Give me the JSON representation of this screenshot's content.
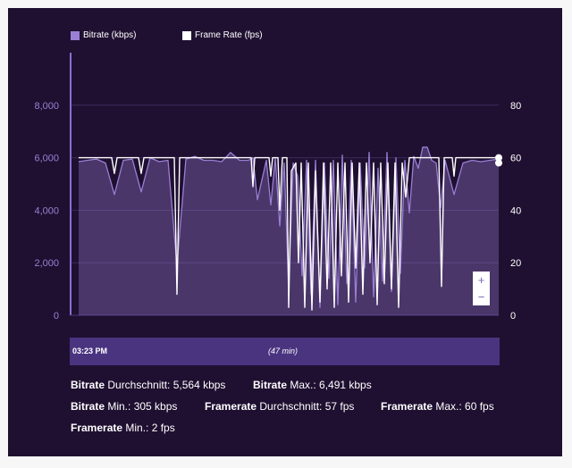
{
  "legend": {
    "bitrate_label": "Bitrate (kbps)",
    "framerate_label": "Frame Rate (fps)",
    "bitrate_color": "#9b7fd4",
    "framerate_color": "#ffffff"
  },
  "timeline": {
    "start": "03:23 PM",
    "duration": "(47 min)"
  },
  "zoom": {
    "in": "+",
    "out": "−"
  },
  "stats": [
    {
      "label": "Bitrate",
      "text": " Durchschnitt: 5,564 kbps"
    },
    {
      "label": "Bitrate",
      "text": " Max.: 6,491 kbps"
    },
    {
      "label": "Bitrate",
      "text": " Min.: 305 kbps"
    },
    {
      "label": "Framerate",
      "text": " Durchschnitt: 57 fps"
    },
    {
      "label": "Framerate",
      "text": " Max.: 60 fps"
    },
    {
      "label": "Framerate",
      "text": " Min.: 2 fps"
    }
  ],
  "chart_data": {
    "type": "line",
    "x_range": [
      0,
      47
    ],
    "y_left": {
      "ticks": [
        "0",
        "2,000",
        "4,000",
        "6,000",
        "8,000"
      ],
      "ylim": [
        0,
        10000
      ]
    },
    "y_right": {
      "ticks": [
        "0",
        "20",
        "40",
        "60",
        "80"
      ],
      "ylim": [
        0,
        100
      ]
    },
    "grid": true,
    "legend_position": "top-left",
    "series": [
      {
        "name": "Bitrate (kbps)",
        "color": "#9b7fd4",
        "points": [
          [
            0,
            5850
          ],
          [
            1,
            5900
          ],
          [
            2,
            5950
          ],
          [
            3,
            5800
          ],
          [
            4,
            4600
          ],
          [
            5,
            5900
          ],
          [
            6,
            5950
          ],
          [
            7,
            4700
          ],
          [
            8,
            6000
          ],
          [
            9,
            5850
          ],
          [
            10,
            5900
          ],
          [
            11,
            1900
          ],
          [
            12,
            5950
          ],
          [
            13,
            6050
          ],
          [
            14,
            5900
          ],
          [
            15,
            5900
          ],
          [
            16,
            5850
          ],
          [
            17,
            6200
          ],
          [
            18,
            5900
          ],
          [
            19,
            5900
          ],
          [
            19.5,
            6000
          ],
          [
            20,
            4400
          ],
          [
            21,
            5900
          ],
          [
            21.5,
            4200
          ],
          [
            22,
            6000
          ],
          [
            22.5,
            3400
          ],
          [
            23,
            5800
          ],
          [
            23.5,
            1000
          ],
          [
            24,
            5800
          ],
          [
            24.5,
            5300
          ],
          [
            25,
            1500
          ],
          [
            25.5,
            5900
          ],
          [
            26,
            800
          ],
          [
            26.5,
            5900
          ],
          [
            27,
            300
          ],
          [
            27.5,
            5800
          ],
          [
            28,
            1400
          ],
          [
            28.5,
            5900
          ],
          [
            29,
            400
          ],
          [
            29.5,
            6100
          ],
          [
            30,
            1200
          ],
          [
            30.5,
            5900
          ],
          [
            31,
            500
          ],
          [
            31.5,
            5800
          ],
          [
            32,
            1800
          ],
          [
            32.5,
            6200
          ],
          [
            33,
            700
          ],
          [
            33.5,
            5600
          ],
          [
            34,
            1300
          ],
          [
            34.5,
            6200
          ],
          [
            35,
            900
          ],
          [
            35.5,
            6000
          ],
          [
            36,
            1600
          ],
          [
            36.5,
            5900
          ],
          [
            37,
            3900
          ],
          [
            37.5,
            6050
          ],
          [
            38,
            5600
          ],
          [
            38.5,
            6400
          ],
          [
            39,
            6400
          ],
          [
            39.5,
            5900
          ],
          [
            40,
            5800
          ],
          [
            40.5,
            4100
          ],
          [
            41,
            5900
          ],
          [
            42,
            4600
          ],
          [
            43,
            5800
          ],
          [
            44,
            5900
          ],
          [
            45,
            5850
          ],
          [
            46,
            5900
          ],
          [
            47,
            5950
          ]
        ]
      },
      {
        "name": "Frame Rate (fps)",
        "color": "#ffffff",
        "points": [
          [
            0,
            60
          ],
          [
            3.7,
            60
          ],
          [
            4,
            54
          ],
          [
            4.3,
            60
          ],
          [
            6.7,
            60
          ],
          [
            7,
            54
          ],
          [
            7.3,
            60
          ],
          [
            10.7,
            60
          ],
          [
            11,
            8
          ],
          [
            11.3,
            60
          ],
          [
            19.3,
            60
          ],
          [
            19.5,
            49
          ],
          [
            19.7,
            60
          ],
          [
            21.3,
            60
          ],
          [
            21.5,
            53
          ],
          [
            21.7,
            60
          ],
          [
            22.3,
            60
          ],
          [
            22.5,
            40
          ],
          [
            22.8,
            60
          ],
          [
            23.3,
            60
          ],
          [
            23.5,
            3
          ],
          [
            23.8,
            55
          ],
          [
            24.3,
            58
          ],
          [
            24.6,
            20
          ],
          [
            24.9,
            58
          ],
          [
            25.3,
            3
          ],
          [
            25.7,
            58
          ],
          [
            26.1,
            2
          ],
          [
            26.5,
            55
          ],
          [
            27,
            5
          ],
          [
            27.4,
            58
          ],
          [
            27.8,
            10
          ],
          [
            28.2,
            58
          ],
          [
            28.6,
            3
          ],
          [
            29,
            58
          ],
          [
            29.4,
            15
          ],
          [
            29.8,
            58
          ],
          [
            30.2,
            5
          ],
          [
            30.6,
            58
          ],
          [
            31,
            18
          ],
          [
            31.4,
            58
          ],
          [
            31.8,
            8
          ],
          [
            32.2,
            58
          ],
          [
            32.6,
            20
          ],
          [
            33,
            58
          ],
          [
            33.4,
            4
          ],
          [
            33.8,
            58
          ],
          [
            34.2,
            12
          ],
          [
            34.6,
            58
          ],
          [
            35,
            10
          ],
          [
            35.4,
            58
          ],
          [
            35.8,
            3
          ],
          [
            36.2,
            58
          ],
          [
            36.6,
            45
          ],
          [
            37,
            60
          ],
          [
            40.3,
            60
          ],
          [
            40.6,
            11
          ],
          [
            40.9,
            60
          ],
          [
            41.8,
            60
          ],
          [
            42,
            53
          ],
          [
            42.2,
            60
          ],
          [
            47,
            60
          ],
          [
            47,
            58
          ]
        ]
      }
    ]
  }
}
